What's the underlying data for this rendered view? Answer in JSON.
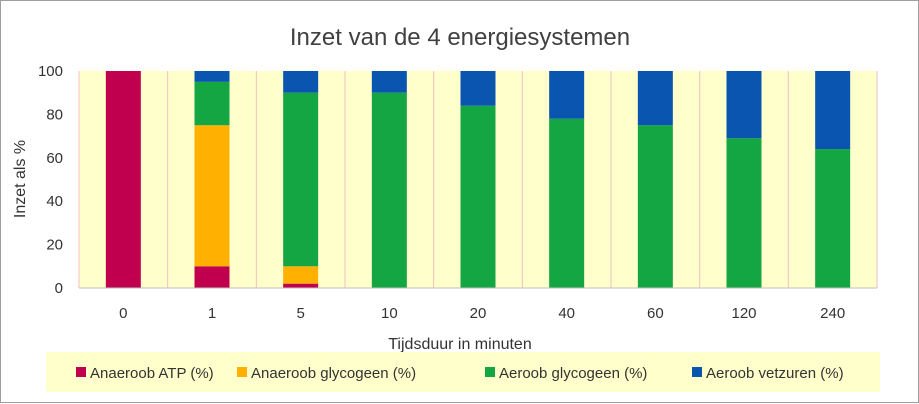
{
  "chart_data": {
    "type": "bar",
    "stacked": true,
    "title": "Inzet van de 4 energiesystemen",
    "xlabel": "Tijdsduur in minuten",
    "ylabel": "Inzet als %",
    "categories": [
      "0",
      "1",
      "5",
      "10",
      "20",
      "40",
      "60",
      "120",
      "240"
    ],
    "ylim": [
      0,
      100
    ],
    "yticks": [
      0,
      20,
      40,
      60,
      80,
      100
    ],
    "grid": "vertical",
    "legend_position": "bottom",
    "series": [
      {
        "name": "Anaeroob ATP (%)",
        "color": "#c0004f",
        "values": [
          100,
          10,
          2,
          0,
          0,
          0,
          0,
          0,
          0
        ]
      },
      {
        "name": "Anaeroob glycogeen (%)",
        "color": "#ffb000",
        "values": [
          0,
          65,
          8,
          0,
          0,
          0,
          0,
          0,
          0
        ]
      },
      {
        "name": "Aeroob glycogeen (%)",
        "color": "#13a643",
        "values": [
          0,
          20,
          80,
          90,
          84,
          78,
          75,
          69,
          64
        ]
      },
      {
        "name": "Aeroob vetzuren (%)",
        "color": "#0a55b0",
        "values": [
          0,
          5,
          10,
          10,
          16,
          22,
          25,
          31,
          36
        ]
      }
    ],
    "plot_background": "#ffffcc",
    "legend_background": "#ffffcc",
    "gridline_color": "#f2bfbf"
  }
}
